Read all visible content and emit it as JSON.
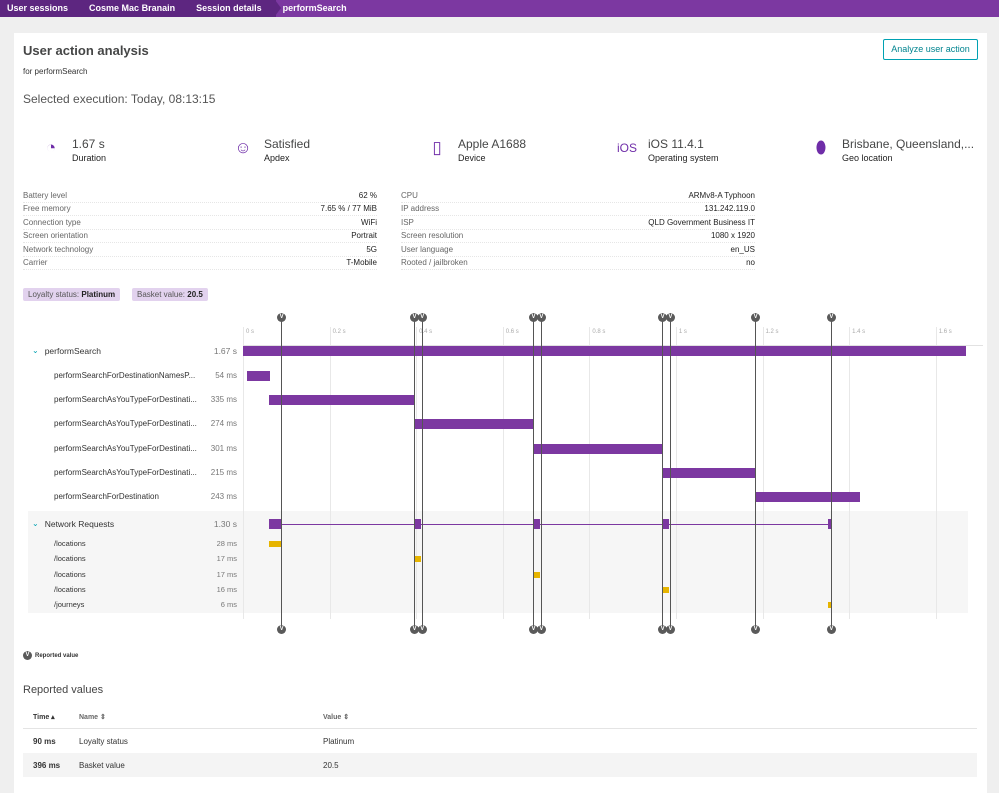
{
  "breadcrumbs": [
    "User sessions",
    "Cosme Mac Branain",
    "Session details",
    "performSearch"
  ],
  "header": {
    "title": "User action analysis",
    "subtitle": "for performSearch",
    "execution": "Selected execution: Today, 08:13:15",
    "analyze_button": "Analyze user action"
  },
  "kpis": [
    {
      "icon": "stopwatch-icon",
      "glyph": "◔",
      "value": "1.67 s",
      "label": "Duration"
    },
    {
      "icon": "smiley-icon",
      "glyph": "☺",
      "value": "Satisfied",
      "label": "Apdex"
    },
    {
      "icon": "phone-icon",
      "glyph": "▯",
      "value": "Apple A1688",
      "label": "Device"
    },
    {
      "icon": "ios-icon",
      "glyph": "iOS",
      "value": "iOS 11.4.1",
      "label": "Operating system"
    },
    {
      "icon": "location-pin-icon",
      "glyph": "⬮",
      "value": "Brisbane, Queensland,...",
      "label": "Geo location"
    }
  ],
  "properties_left": [
    [
      "Battery level",
      "62 %"
    ],
    [
      "Free memory",
      "7.65 % / 77 MiB"
    ],
    [
      "Connection type",
      "WiFi"
    ],
    [
      "Screen orientation",
      "Portrait"
    ],
    [
      "Network technology",
      "5G"
    ],
    [
      "Carrier",
      "T-Mobile"
    ]
  ],
  "properties_right": [
    [
      "CPU",
      "ARMv8-A Typhoon"
    ],
    [
      "IP address",
      "131.242.119.0"
    ],
    [
      "ISP",
      "QLD Government Business IT"
    ],
    [
      "Screen resolution",
      "1080 x 1920"
    ],
    [
      "User language",
      "en_US"
    ],
    [
      "Rooted / jailbroken",
      "no"
    ]
  ],
  "tags": [
    {
      "key": "Loyalty status:",
      "value": "Platinum"
    },
    {
      "key": "Basket value:",
      "value": "20.5"
    }
  ],
  "timeline": {
    "ticks": [
      "0 s",
      "0.2 s",
      "0.4 s",
      "0.6 s",
      "0.8 s",
      "1 s",
      "1.2 s",
      "1.4 s",
      "1.6 s"
    ],
    "total_ms": 1670,
    "colors": {
      "action": "#7c38a1",
      "request": "#e6b400"
    },
    "action": {
      "name": "performSearch",
      "duration": "1.67 s",
      "start_ms": 0,
      "ms": 1670
    },
    "children": [
      {
        "name": "performSearchForDestinationNamesP...",
        "duration": "54 ms",
        "start_ms": 9,
        "ms": 54
      },
      {
        "name": "performSearchAsYouTypeForDestinati...",
        "duration": "335 ms",
        "start_ms": 60,
        "ms": 335
      },
      {
        "name": "performSearchAsYouTypeForDestinati...",
        "duration": "274 ms",
        "start_ms": 395,
        "ms": 274
      },
      {
        "name": "performSearchAsYouTypeForDestinati...",
        "duration": "301 ms",
        "start_ms": 670,
        "ms": 301
      },
      {
        "name": "performSearchAsYouTypeForDestinati...",
        "duration": "215 ms",
        "start_ms": 970,
        "ms": 215
      },
      {
        "name": "performSearchForDestination",
        "duration": "243 ms",
        "start_ms": 1183,
        "ms": 243
      }
    ],
    "network": {
      "name": "Network Requests",
      "duration": "1.30 s",
      "start_ms": 60,
      "ms": 1300,
      "requests": [
        {
          "name": "/locations",
          "duration": "28 ms",
          "start_ms": 60,
          "ms": 28
        },
        {
          "name": "/locations",
          "duration": "17 ms",
          "start_ms": 395,
          "ms": 17
        },
        {
          "name": "/locations",
          "duration": "17 ms",
          "start_ms": 670,
          "ms": 17
        },
        {
          "name": "/locations",
          "duration": "16 ms",
          "start_ms": 968,
          "ms": 16
        },
        {
          "name": "/journeys",
          "duration": "6 ms",
          "start_ms": 1352,
          "ms": 6
        }
      ]
    },
    "markers_ms": [
      88,
      395,
      413,
      670,
      688,
      968,
      986,
      1183,
      1358
    ],
    "marker_glyph": "V",
    "legend": "Reported value"
  },
  "reported": {
    "title": "Reported values",
    "columns": [
      "Time ▴",
      "Name ⇕",
      "Value ⇕"
    ],
    "rows": [
      [
        "90 ms",
        "Loyalty status",
        "Platinum"
      ],
      [
        "396 ms",
        "Basket value",
        "20.5"
      ]
    ]
  }
}
